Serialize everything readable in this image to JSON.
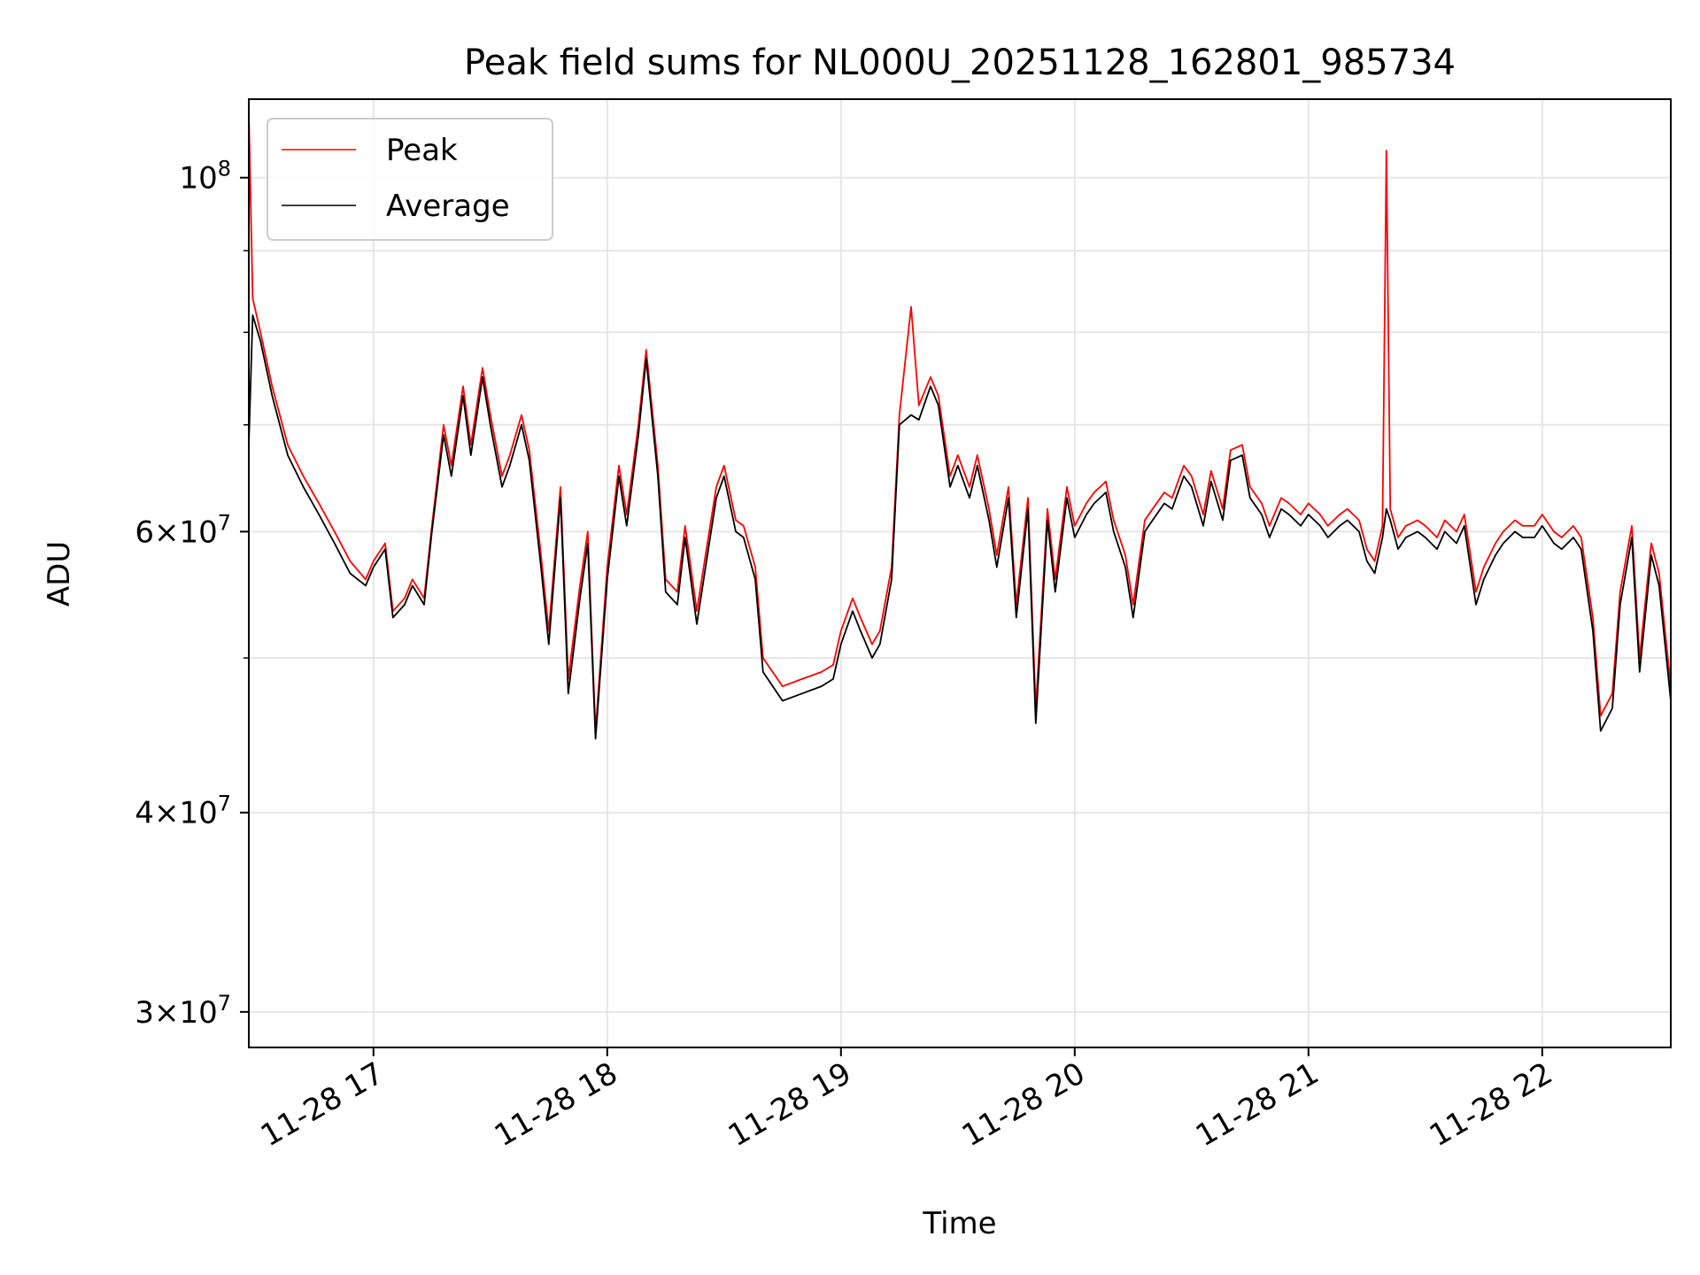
{
  "chart_data": {
    "type": "line",
    "title": "Peak field sums for NL000U_20251128_162801_985734",
    "xlabel": "Time",
    "ylabel": "ADU",
    "yscale": "log",
    "grid": true,
    "legend_position": "upper left",
    "xlim": [
      "2025-11-28 16:28",
      "2025-11-28 22:33"
    ],
    "ylim": [
      28500000,
      112000000
    ],
    "x_ticks": [
      {
        "t": "2025-11-28 17:00",
        "label": "11-28 17"
      },
      {
        "t": "2025-11-28 18:00",
        "label": "11-28 18"
      },
      {
        "t": "2025-11-28 19:00",
        "label": "11-28 19"
      },
      {
        "t": "2025-11-28 20:00",
        "label": "11-28 20"
      },
      {
        "t": "2025-11-28 21:00",
        "label": "11-28 21"
      },
      {
        "t": "2025-11-28 22:00",
        "label": "11-28 22"
      }
    ],
    "y_major_ticks": [
      {
        "value": 30000000,
        "mantissa": "3",
        "exponent": "7"
      },
      {
        "value": 40000000,
        "mantissa": "4",
        "exponent": "7"
      },
      {
        "value": 60000000,
        "mantissa": "6",
        "exponent": "7"
      },
      {
        "value": 100000000,
        "mantissa": "",
        "exponent": "8"
      }
    ],
    "y_minor_gridlines": [
      50000000,
      70000000,
      80000000,
      90000000
    ],
    "series": [
      {
        "name": "Peak",
        "color": "#ff0000",
        "x": [
          "2025-11-28 16:28",
          "2025-11-28 16:29",
          "2025-11-28 16:31",
          "2025-11-28 16:34",
          "2025-11-28 16:38",
          "2025-11-28 16:42",
          "2025-11-28 16:46",
          "2025-11-28 16:50",
          "2025-11-28 16:54",
          "2025-11-28 16:58",
          "2025-11-28 17:00",
          "2025-11-28 17:03",
          "2025-11-28 17:05",
          "2025-11-28 17:08",
          "2025-11-28 17:10",
          "2025-11-28 17:13",
          "2025-11-28 17:15",
          "2025-11-28 17:18",
          "2025-11-28 17:20",
          "2025-11-28 17:23",
          "2025-11-28 17:25",
          "2025-11-28 17:28",
          "2025-11-28 17:30",
          "2025-11-28 17:33",
          "2025-11-28 17:35",
          "2025-11-28 17:38",
          "2025-11-28 17:40",
          "2025-11-28 17:43",
          "2025-11-28 17:45",
          "2025-11-28 17:48",
          "2025-11-28 17:50",
          "2025-11-28 17:53",
          "2025-11-28 17:55",
          "2025-11-28 17:57",
          "2025-11-28 18:00",
          "2025-11-28 18:03",
          "2025-11-28 18:05",
          "2025-11-28 18:08",
          "2025-11-28 18:10",
          "2025-11-28 18:13",
          "2025-11-28 18:15",
          "2025-11-28 18:18",
          "2025-11-28 18:20",
          "2025-11-28 18:23",
          "2025-11-28 18:25",
          "2025-11-28 18:28",
          "2025-11-28 18:30",
          "2025-11-28 18:33",
          "2025-11-28 18:35",
          "2025-11-28 18:38",
          "2025-11-28 18:40",
          "2025-11-28 18:45",
          "2025-11-28 18:50",
          "2025-11-28 18:55",
          "2025-11-28 18:58",
          "2025-11-28 19:00",
          "2025-11-28 19:03",
          "2025-11-28 19:05",
          "2025-11-28 19:08",
          "2025-11-28 19:10",
          "2025-11-28 19:13",
          "2025-11-28 19:15",
          "2025-11-28 19:18",
          "2025-11-28 19:20",
          "2025-11-28 19:23",
          "2025-11-28 19:25",
          "2025-11-28 19:28",
          "2025-11-28 19:30",
          "2025-11-28 19:33",
          "2025-11-28 19:35",
          "2025-11-28 19:38",
          "2025-11-28 19:40",
          "2025-11-28 19:43",
          "2025-11-28 19:45",
          "2025-11-28 19:48",
          "2025-11-28 19:50",
          "2025-11-28 19:53",
          "2025-11-28 19:55",
          "2025-11-28 19:58",
          "2025-11-28 20:00",
          "2025-11-28 20:03",
          "2025-11-28 20:05",
          "2025-11-28 20:08",
          "2025-11-28 20:10",
          "2025-11-28 20:13",
          "2025-11-28 20:15",
          "2025-11-28 20:18",
          "2025-11-28 20:20",
          "2025-11-28 20:23",
          "2025-11-28 20:25",
          "2025-11-28 20:28",
          "2025-11-28 20:30",
          "2025-11-28 20:33",
          "2025-11-28 20:35",
          "2025-11-28 20:38",
          "2025-11-28 20:40",
          "2025-11-28 20:43",
          "2025-11-28 20:45",
          "2025-11-28 20:48",
          "2025-11-28 20:50",
          "2025-11-28 20:53",
          "2025-11-28 20:55",
          "2025-11-28 20:58",
          "2025-11-28 21:00",
          "2025-11-28 21:03",
          "2025-11-28 21:05",
          "2025-11-28 21:08",
          "2025-11-28 21:10",
          "2025-11-28 21:13",
          "2025-11-28 21:15",
          "2025-11-28 21:17",
          "2025-11-28 21:19",
          "2025-11-28 21:20",
          "2025-11-28 21:21",
          "2025-11-28 21:23",
          "2025-11-28 21:25",
          "2025-11-28 21:28",
          "2025-11-28 21:30",
          "2025-11-28 21:33",
          "2025-11-28 21:35",
          "2025-11-28 21:38",
          "2025-11-28 21:40",
          "2025-11-28 21:43",
          "2025-11-28 21:45",
          "2025-11-28 21:48",
          "2025-11-28 21:50",
          "2025-11-28 21:53",
          "2025-11-28 21:55",
          "2025-11-28 21:58",
          "2025-11-28 22:00",
          "2025-11-28 22:03",
          "2025-11-28 22:05",
          "2025-11-28 22:08",
          "2025-11-28 22:10",
          "2025-11-28 22:13",
          "2025-11-28 22:15",
          "2025-11-28 22:18",
          "2025-11-28 22:20",
          "2025-11-28 22:23",
          "2025-11-28 22:25",
          "2025-11-28 22:28",
          "2025-11-28 22:30",
          "2025-11-28 22:33"
        ],
        "values": [
          110000000,
          84000000,
          80000000,
          74000000,
          68000000,
          65000000,
          62500000,
          60000000,
          57500000,
          56000000,
          57500000,
          59000000,
          53500000,
          54500000,
          56000000,
          54500000,
          60500000,
          70000000,
          66000000,
          74000000,
          68000000,
          76000000,
          71000000,
          65000000,
          67000000,
          71000000,
          67500000,
          58000000,
          52000000,
          64000000,
          48500000,
          55500000,
          60000000,
          45000000,
          57000000,
          66000000,
          61500000,
          70000000,
          78000000,
          66000000,
          56000000,
          55000000,
          60500000,
          53500000,
          57500000,
          64000000,
          66000000,
          61000000,
          60500000,
          57000000,
          50000000,
          48000000,
          48500000,
          49000000,
          49500000,
          52000000,
          54500000,
          53000000,
          51000000,
          52000000,
          57000000,
          71000000,
          83000000,
          72000000,
          75000000,
          73000000,
          65000000,
          67000000,
          64000000,
          67000000,
          62000000,
          58000000,
          64000000,
          54000000,
          63000000,
          46500000,
          62000000,
          56000000,
          64000000,
          60500000,
          62500000,
          63500000,
          64500000,
          61000000,
          58000000,
          54000000,
          61000000,
          62000000,
          63500000,
          63000000,
          66000000,
          65000000,
          61500000,
          65500000,
          62000000,
          67500000,
          68000000,
          64000000,
          62500000,
          60500000,
          63000000,
          62500000,
          61500000,
          62500000,
          61500000,
          60500000,
          61500000,
          62000000,
          61000000,
          58500000,
          57500000,
          60500000,
          104000000,
          62000000,
          59500000,
          60500000,
          61000000,
          60500000,
          59500000,
          61000000,
          60000000,
          61500000,
          55000000,
          57000000,
          59000000,
          60000000,
          61000000,
          60500000,
          60500000,
          61500000,
          60000000,
          59500000,
          60500000,
          59500000,
          53000000,
          46000000,
          47500000,
          55000000,
          60500000,
          50000000,
          59000000,
          56500000,
          48000000
        ]
      },
      {
        "name": "Average",
        "color": "#000000",
        "x": [
          "2025-11-28 16:28",
          "2025-11-28 16:29",
          "2025-11-28 16:31",
          "2025-11-28 16:34",
          "2025-11-28 16:38",
          "2025-11-28 16:42",
          "2025-11-28 16:46",
          "2025-11-28 16:50",
          "2025-11-28 16:54",
          "2025-11-28 16:58",
          "2025-11-28 17:00",
          "2025-11-28 17:03",
          "2025-11-28 17:05",
          "2025-11-28 17:08",
          "2025-11-28 17:10",
          "2025-11-28 17:13",
          "2025-11-28 17:15",
          "2025-11-28 17:18",
          "2025-11-28 17:20",
          "2025-11-28 17:23",
          "2025-11-28 17:25",
          "2025-11-28 17:28",
          "2025-11-28 17:30",
          "2025-11-28 17:33",
          "2025-11-28 17:35",
          "2025-11-28 17:38",
          "2025-11-28 17:40",
          "2025-11-28 17:43",
          "2025-11-28 17:45",
          "2025-11-28 17:48",
          "2025-11-28 17:50",
          "2025-11-28 17:53",
          "2025-11-28 17:55",
          "2025-11-28 17:57",
          "2025-11-28 18:00",
          "2025-11-28 18:03",
          "2025-11-28 18:05",
          "2025-11-28 18:08",
          "2025-11-28 18:10",
          "2025-11-28 18:13",
          "2025-11-28 18:15",
          "2025-11-28 18:18",
          "2025-11-28 18:20",
          "2025-11-28 18:23",
          "2025-11-28 18:25",
          "2025-11-28 18:28",
          "2025-11-28 18:30",
          "2025-11-28 18:33",
          "2025-11-28 18:35",
          "2025-11-28 18:38",
          "2025-11-28 18:40",
          "2025-11-28 18:45",
          "2025-11-28 18:50",
          "2025-11-28 18:55",
          "2025-11-28 18:58",
          "2025-11-28 19:00",
          "2025-11-28 19:03",
          "2025-11-28 19:05",
          "2025-11-28 19:08",
          "2025-11-28 19:10",
          "2025-11-28 19:13",
          "2025-11-28 19:15",
          "2025-11-28 19:18",
          "2025-11-28 19:20",
          "2025-11-28 19:23",
          "2025-11-28 19:25",
          "2025-11-28 19:28",
          "2025-11-28 19:30",
          "2025-11-28 19:33",
          "2025-11-28 19:35",
          "2025-11-28 19:38",
          "2025-11-28 19:40",
          "2025-11-28 19:43",
          "2025-11-28 19:45",
          "2025-11-28 19:48",
          "2025-11-28 19:50",
          "2025-11-28 19:53",
          "2025-11-28 19:55",
          "2025-11-28 19:58",
          "2025-11-28 20:00",
          "2025-11-28 20:03",
          "2025-11-28 20:05",
          "2025-11-28 20:08",
          "2025-11-28 20:10",
          "2025-11-28 20:13",
          "2025-11-28 20:15",
          "2025-11-28 20:18",
          "2025-11-28 20:20",
          "2025-11-28 20:23",
          "2025-11-28 20:25",
          "2025-11-28 20:28",
          "2025-11-28 20:30",
          "2025-11-28 20:33",
          "2025-11-28 20:35",
          "2025-11-28 20:38",
          "2025-11-28 20:40",
          "2025-11-28 20:43",
          "2025-11-28 20:45",
          "2025-11-28 20:48",
          "2025-11-28 20:50",
          "2025-11-28 20:53",
          "2025-11-28 20:55",
          "2025-11-28 20:58",
          "2025-11-28 21:00",
          "2025-11-28 21:03",
          "2025-11-28 21:05",
          "2025-11-28 21:08",
          "2025-11-28 21:10",
          "2025-11-28 21:13",
          "2025-11-28 21:15",
          "2025-11-28 21:17",
          "2025-11-28 21:19",
          "2025-11-28 21:20",
          "2025-11-28 21:21",
          "2025-11-28 21:23",
          "2025-11-28 21:25",
          "2025-11-28 21:28",
          "2025-11-28 21:30",
          "2025-11-28 21:33",
          "2025-11-28 21:35",
          "2025-11-28 21:38",
          "2025-11-28 21:40",
          "2025-11-28 21:43",
          "2025-11-28 21:45",
          "2025-11-28 21:48",
          "2025-11-28 21:50",
          "2025-11-28 21:53",
          "2025-11-28 21:55",
          "2025-11-28 21:58",
          "2025-11-28 22:00",
          "2025-11-28 22:03",
          "2025-11-28 22:05",
          "2025-11-28 22:08",
          "2025-11-28 22:10",
          "2025-11-28 22:13",
          "2025-11-28 22:15",
          "2025-11-28 22:18",
          "2025-11-28 22:20",
          "2025-11-28 22:23",
          "2025-11-28 22:25",
          "2025-11-28 22:28",
          "2025-11-28 22:30",
          "2025-11-28 22:33"
        ],
        "values": [
          68000000,
          82000000,
          79000000,
          73000000,
          67000000,
          64000000,
          61500000,
          59000000,
          56500000,
          55500000,
          57000000,
          58500000,
          53000000,
          54000000,
          55500000,
          54000000,
          60000000,
          69000000,
          65000000,
          73000000,
          67000000,
          75000000,
          70000000,
          64000000,
          66000000,
          70000000,
          66500000,
          57000000,
          51000000,
          63000000,
          47500000,
          54500000,
          59000000,
          44500000,
          56000000,
          65000000,
          60500000,
          69000000,
          77000000,
          65000000,
          55000000,
          54000000,
          59500000,
          52500000,
          56500000,
          63000000,
          65000000,
          60000000,
          59500000,
          56000000,
          49000000,
          47000000,
          47500000,
          48000000,
          48500000,
          51000000,
          53500000,
          52000000,
          50000000,
          51000000,
          56000000,
          70000000,
          71000000,
          70500000,
          74000000,
          72000000,
          64000000,
          66000000,
          63000000,
          66000000,
          61000000,
          57000000,
          63000000,
          53000000,
          62000000,
          45500000,
          61000000,
          55000000,
          63000000,
          59500000,
          61500000,
          62500000,
          63500000,
          60000000,
          57000000,
          53000000,
          60000000,
          61000000,
          62500000,
          62000000,
          65000000,
          64000000,
          60500000,
          64500000,
          61000000,
          66500000,
          67000000,
          63000000,
          61500000,
          59500000,
          62000000,
          61500000,
          60500000,
          61500000,
          60500000,
          59500000,
          60500000,
          61000000,
          60000000,
          57500000,
          56500000,
          59500000,
          62000000,
          61000000,
          58500000,
          59500000,
          60000000,
          59500000,
          58500000,
          60000000,
          59000000,
          60500000,
          54000000,
          56000000,
          58000000,
          59000000,
          60000000,
          59500000,
          59500000,
          60500000,
          59000000,
          58500000,
          59500000,
          58500000,
          52000000,
          45000000,
          46500000,
          54000000,
          59500000,
          49000000,
          58000000,
          55500000,
          47000000
        ]
      }
    ]
  }
}
